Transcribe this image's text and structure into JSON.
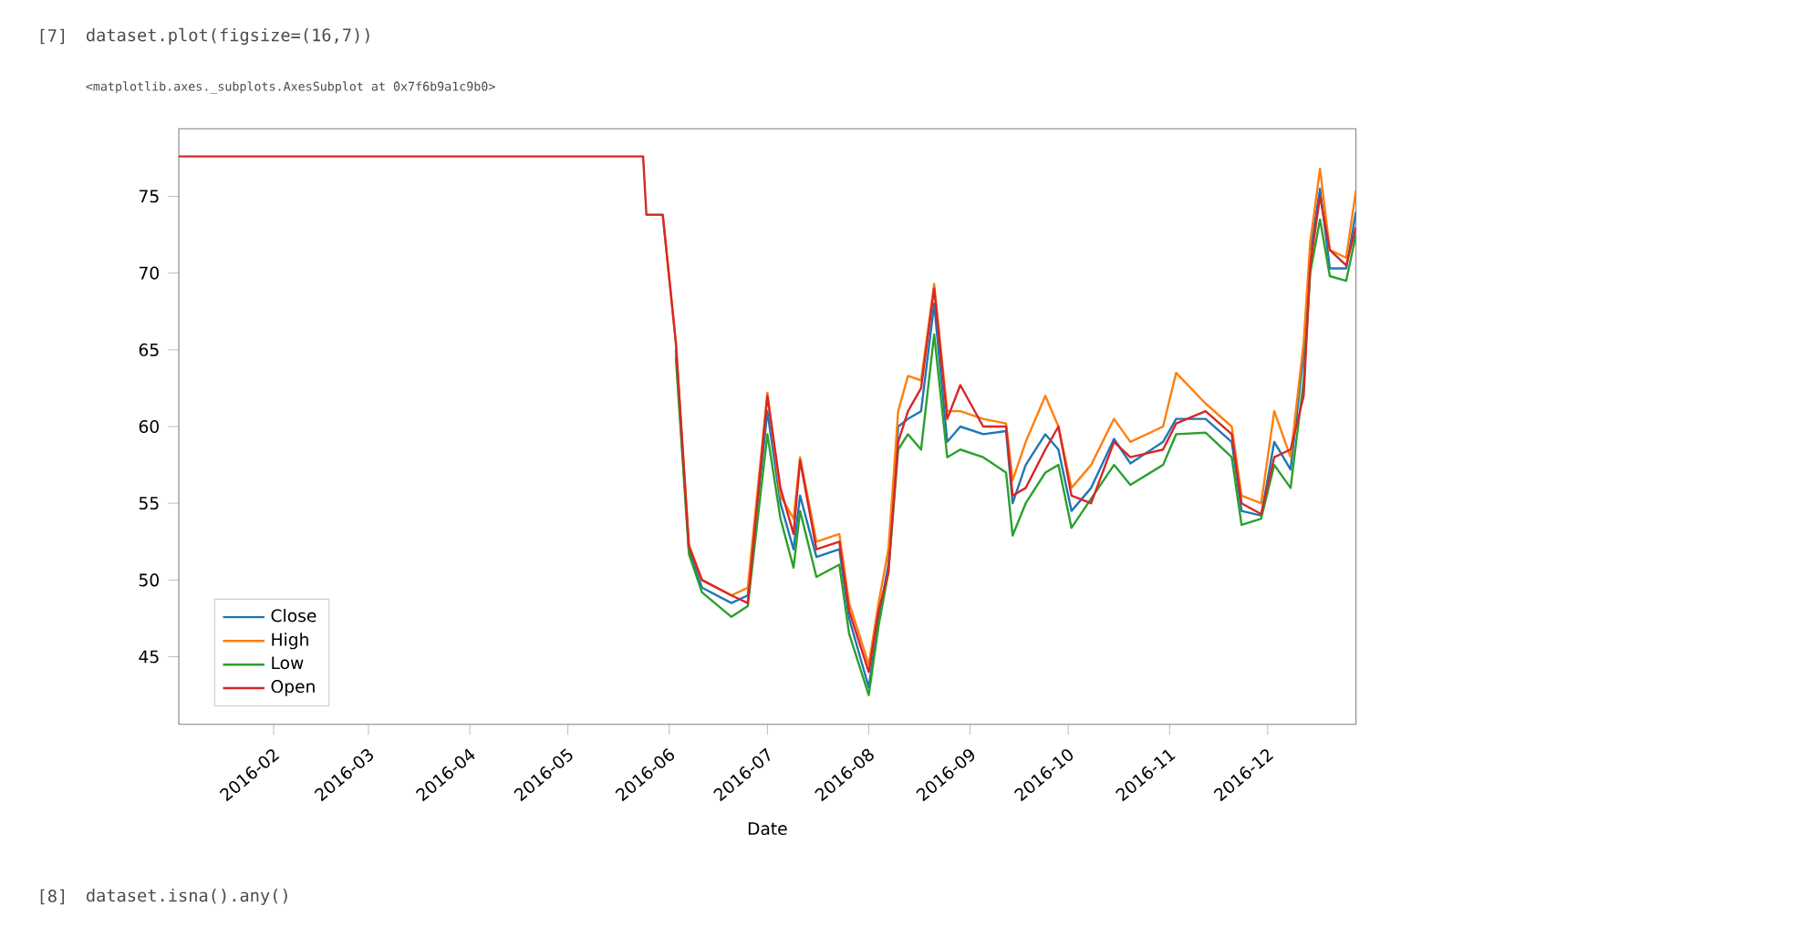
{
  "chart_data": {
    "type": "line",
    "xlabel": "Date",
    "legend": "bottom left",
    "line_style": "solid",
    "annotations": [
      "[7]",
      "dataset.plot(figsize=(16,7))",
      "<matplotlib.axes._subplots.AxesSubplot at 0x7f6b9a1c9b0>",
      "[8]",
      "dataset.isna().any()"
    ],
    "xlim": [
      "2016-01-03",
      "2016-12-28"
    ],
    "ylim": [
      40.6,
      79.4
    ],
    "xticks": [
      "2016-02",
      "2016-03",
      "2016-04",
      "2016-05",
      "2016-06",
      "2016-07",
      "2016-08",
      "2016-09",
      "2016-10",
      "2016-11",
      "2016-12"
    ],
    "yticks": [
      45,
      50,
      55,
      60,
      65,
      70,
      75
    ],
    "x": [
      "2016-01-03",
      "2016-05-24",
      "2016-05-25",
      "2016-05-30",
      "2016-06-03",
      "2016-06-07",
      "2016-06-11",
      "2016-06-20",
      "2016-06-25",
      "2016-07-01",
      "2016-07-05",
      "2016-07-09",
      "2016-07-11",
      "2016-07-16",
      "2016-07-23",
      "2016-07-26",
      "2016-08-01",
      "2016-08-04",
      "2016-08-07",
      "2016-08-10",
      "2016-08-13",
      "2016-08-17",
      "2016-08-21",
      "2016-08-25",
      "2016-08-29",
      "2016-09-05",
      "2016-09-12",
      "2016-09-14",
      "2016-09-18",
      "2016-09-24",
      "2016-09-28",
      "2016-10-02",
      "2016-10-08",
      "2016-10-15",
      "2016-10-20",
      "2016-10-30",
      "2016-11-03",
      "2016-11-12",
      "2016-11-20",
      "2016-11-23",
      "2016-11-29",
      "2016-12-03",
      "2016-12-08",
      "2016-12-12",
      "2016-12-14",
      "2016-12-17",
      "2016-12-20",
      "2016-12-25",
      "2016-12-28"
    ],
    "series": [
      {
        "name": "Close",
        "color": "#1f77b4",
        "values": [
          null,
          null,
          null,
          null,
          65,
          52,
          49.5,
          48.5,
          49,
          61,
          55,
          52,
          55.5,
          51.5,
          52,
          47.5,
          43,
          47.5,
          51,
          60,
          60.5,
          61,
          68,
          59,
          60,
          59.5,
          59.7,
          55,
          57.5,
          59.5,
          58.5,
          54.5,
          56,
          59.2,
          57.6,
          59,
          60.5,
          60.5,
          59,
          54.5,
          54.2,
          59,
          57.2,
          64.8,
          71.4,
          75.5,
          70.3,
          70.3,
          74
        ]
      },
      {
        "name": "High",
        "color": "#ff7f0e",
        "values": [
          null,
          null,
          73.8,
          73.8,
          65.5,
          52.3,
          50,
          49,
          49.5,
          62.2,
          55.5,
          54,
          58,
          52.5,
          53,
          48.5,
          44.5,
          48.5,
          52,
          61,
          63.3,
          63,
          69.3,
          61,
          61,
          60.5,
          60.2,
          56.5,
          59,
          62,
          60,
          56,
          57.5,
          60.5,
          59,
          60,
          63.5,
          61.5,
          60,
          55.5,
          55,
          61,
          58,
          65.5,
          72,
          76.8,
          71.5,
          71,
          75.4
        ]
      },
      {
        "name": "Low",
        "color": "#2ca02c",
        "values": [
          null,
          null,
          null,
          null,
          64.5,
          51.7,
          49.2,
          47.6,
          48.3,
          59.5,
          54,
          50.8,
          54.5,
          50.2,
          51,
          46.5,
          42.5,
          47,
          50.5,
          58.5,
          59.5,
          58.5,
          66,
          58,
          58.5,
          58,
          57,
          52.9,
          55,
          57,
          57.5,
          53.4,
          55.3,
          57.5,
          56.2,
          57.5,
          59.5,
          59.6,
          58,
          53.6,
          54,
          57.5,
          56,
          63,
          70,
          73.5,
          69.8,
          69.5,
          72.5
        ]
      },
      {
        "name": "Open",
        "color": "#d62728",
        "values": [
          77.6,
          77.6,
          73.8,
          73.8,
          65.5,
          52.2,
          50,
          49,
          48.5,
          62,
          56,
          53,
          57.8,
          52,
          52.5,
          48,
          44,
          48,
          50.5,
          59,
          61,
          62.5,
          69,
          60.5,
          62.7,
          60,
          60,
          55.5,
          56,
          58.5,
          60,
          55.5,
          55,
          59,
          58,
          58.5,
          60.2,
          61,
          59.5,
          55,
          54.3,
          58,
          58.5,
          62,
          70.5,
          75,
          71.5,
          70.5,
          73
        ]
      }
    ]
  }
}
